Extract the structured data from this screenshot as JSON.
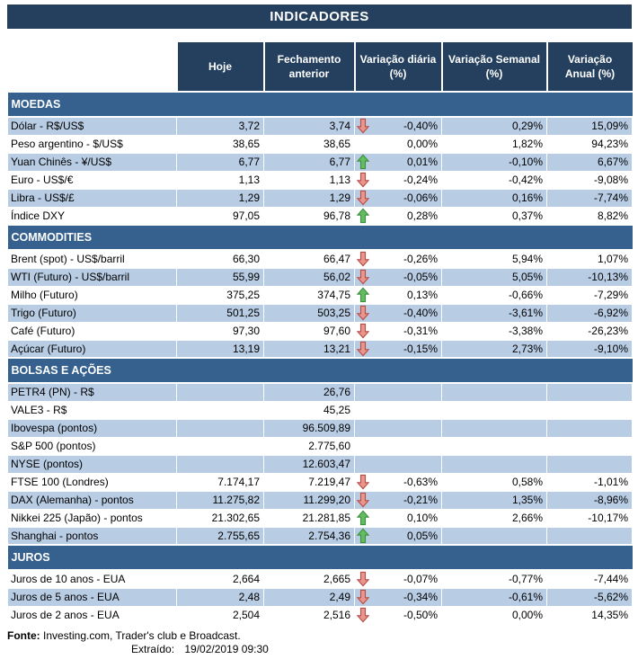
{
  "title": "INDICADORES",
  "columns": [
    "Hoje",
    "Fechamento\nanterior",
    "Variação diária\n(%)",
    "Variação Semanal\n(%)",
    "Variação\nAnual (%)"
  ],
  "sections": [
    {
      "name": "MOEDAS",
      "rows": [
        {
          "label": "Dólar - R$/US$",
          "hoje": "3,72",
          "fechamento": "3,74",
          "arrow": "down",
          "diaria": "-0,40%",
          "semanal": "0,29%",
          "anual": "15,09%",
          "shaded": true
        },
        {
          "label": "Peso argentino - $/US$",
          "hoje": "38,65",
          "fechamento": "38,65",
          "arrow": "",
          "diaria": "0,00%",
          "semanal": "1,82%",
          "anual": "94,23%",
          "shaded": false
        },
        {
          "label": "Yuan Chinês - ¥/US$",
          "hoje": "6,77",
          "fechamento": "6,77",
          "arrow": "up",
          "diaria": "0,01%",
          "semanal": "-0,10%",
          "anual": "6,67%",
          "shaded": true
        },
        {
          "label": "Euro - US$/€",
          "hoje": "1,13",
          "fechamento": "1,13",
          "arrow": "down",
          "diaria": "-0,24%",
          "semanal": "-0,42%",
          "anual": "-9,08%",
          "shaded": false
        },
        {
          "label": "Libra - US$/£",
          "hoje": "1,29",
          "fechamento": "1,29",
          "arrow": "down",
          "diaria": "-0,06%",
          "semanal": "0,16%",
          "anual": "-7,74%",
          "shaded": true
        },
        {
          "label": "Índice DXY",
          "hoje": "97,05",
          "fechamento": "96,78",
          "arrow": "up",
          "diaria": "0,28%",
          "semanal": "0,37%",
          "anual": "8,82%",
          "shaded": false
        }
      ]
    },
    {
      "name": "COMMODITIES",
      "rows": [
        {
          "label": "Brent (spot) - US$/barril",
          "hoje": "66,30",
          "fechamento": "66,47",
          "arrow": "down",
          "diaria": "-0,26%",
          "semanal": "5,94%",
          "anual": "1,07%",
          "shaded": false
        },
        {
          "label": "WTI (Futuro) - US$/barril",
          "hoje": "55,99",
          "fechamento": "56,02",
          "arrow": "down",
          "diaria": "-0,05%",
          "semanal": "5,05%",
          "anual": "-10,13%",
          "shaded": true
        },
        {
          "label": "Milho (Futuro)",
          "hoje": "375,25",
          "fechamento": "374,75",
          "arrow": "up",
          "diaria": "0,13%",
          "semanal": "-0,66%",
          "anual": "-7,29%",
          "shaded": false
        },
        {
          "label": "Trigo (Futuro)",
          "hoje": "501,25",
          "fechamento": "503,25",
          "arrow": "down",
          "diaria": "-0,40%",
          "semanal": "-3,61%",
          "anual": "-6,92%",
          "shaded": true
        },
        {
          "label": "Café (Futuro)",
          "hoje": "97,30",
          "fechamento": "97,60",
          "arrow": "down",
          "diaria": "-0,31%",
          "semanal": "-3,38%",
          "anual": "-26,23%",
          "shaded": false
        },
        {
          "label": "Açúcar (Futuro)",
          "hoje": "13,19",
          "fechamento": "13,21",
          "arrow": "down",
          "diaria": "-0,15%",
          "semanal": "2,73%",
          "anual": "-9,10%",
          "shaded": true
        }
      ]
    },
    {
      "name": "BOLSAS E AÇÕES",
      "rows": [
        {
          "label": "PETR4 (PN) - R$",
          "hoje": "",
          "fechamento": "26,76",
          "arrow": "",
          "diaria": "",
          "semanal": "",
          "anual": "",
          "shaded": true
        },
        {
          "label": "VALE3 - R$",
          "hoje": "",
          "fechamento": "45,25",
          "arrow": "",
          "diaria": "",
          "semanal": "",
          "anual": "",
          "shaded": false
        },
        {
          "label": "Ibovespa (pontos)",
          "hoje": "",
          "fechamento": "96.509,89",
          "arrow": "",
          "diaria": "",
          "semanal": "",
          "anual": "",
          "shaded": true
        },
        {
          "label": "S&P 500 (pontos)",
          "hoje": "",
          "fechamento": "2.775,60",
          "arrow": "",
          "diaria": "",
          "semanal": "",
          "anual": "",
          "shaded": false
        },
        {
          "label": "NYSE (pontos)",
          "hoje": "",
          "fechamento": "12.603,47",
          "arrow": "",
          "diaria": "",
          "semanal": "",
          "anual": "",
          "shaded": true
        },
        {
          "label": "FTSE 100 (Londres)",
          "hoje": "7.174,17",
          "fechamento": "7.219,47",
          "arrow": "down",
          "diaria": "-0,63%",
          "semanal": "0,58%",
          "anual": "-1,01%",
          "shaded": false
        },
        {
          "label": "DAX (Alemanha) - pontos",
          "hoje": "11.275,82",
          "fechamento": "11.299,20",
          "arrow": "down",
          "diaria": "-0,21%",
          "semanal": "1,35%",
          "anual": "-8,96%",
          "shaded": true
        },
        {
          "label": "Nikkei 225 (Japão) - pontos",
          "hoje": "21.302,65",
          "fechamento": "21.281,85",
          "arrow": "up",
          "diaria": "0,10%",
          "semanal": "2,66%",
          "anual": "-10,17%",
          "shaded": false
        },
        {
          "label": "Shanghai - pontos",
          "hoje": "2.755,65",
          "fechamento": "2.754,36",
          "arrow": "up",
          "diaria": "0,05%",
          "semanal": "",
          "anual": "",
          "shaded": true
        }
      ]
    },
    {
      "name": "JUROS",
      "rows": [
        {
          "label": "Juros de 10 anos - EUA",
          "hoje": "2,664",
          "fechamento": "2,665",
          "arrow": "down",
          "diaria": "-0,07%",
          "semanal": "-0,77%",
          "anual": "-7,44%",
          "shaded": false
        },
        {
          "label": "Juros de 5 anos - EUA",
          "hoje": "2,48",
          "fechamento": "2,49",
          "arrow": "down",
          "diaria": "-0,34%",
          "semanal": "-0,61%",
          "anual": "-5,62%",
          "shaded": true
        },
        {
          "label": "Juros de 2 anos - EUA",
          "hoje": "2,504",
          "fechamento": "2,516",
          "arrow": "down",
          "diaria": "-0,50%",
          "semanal": "0,00%",
          "anual": "14,35%",
          "shaded": false
        }
      ]
    }
  ],
  "footer": {
    "fonte_label": "Fonte:",
    "fonte_text": "Investing.com, Trader's club e Broadcast.",
    "extraido_label": "Extraído:",
    "extraido_value": "19/02/2019 09:30"
  },
  "colors": {
    "header_bg": "#24405E",
    "section_bg": "#36618E",
    "row_shaded": "#B8CCE4",
    "arrow_up_fill": "#63BE5F",
    "arrow_up_stroke": "#3F8F42",
    "arrow_down_fill": "#E9968F",
    "arrow_down_stroke": "#B84D44"
  }
}
